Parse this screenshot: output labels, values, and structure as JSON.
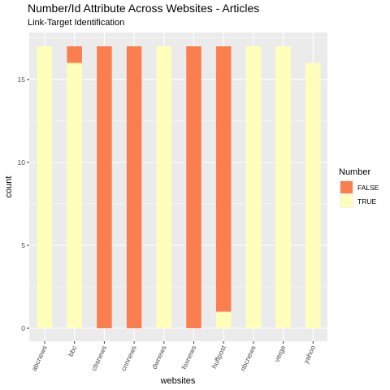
{
  "chart_data": {
    "type": "bar",
    "stacked": true,
    "title": "Number/Id Attribute Across Websites - Articles",
    "subtitle": "Link-Target Identification",
    "xlabel": "websites",
    "ylabel": "count",
    "ylim": [
      0,
      17.85
    ],
    "yticks": [
      0,
      5,
      10,
      15
    ],
    "grid": true,
    "legend_position": "right",
    "legend_title": "Number",
    "categories": [
      "abcnews",
      "bbc",
      "cbsnews",
      "cnnnews",
      "dwnews",
      "foxnews",
      "huffpost",
      "nbcnews",
      "verge",
      "yahoo"
    ],
    "series": [
      {
        "name": "FALSE",
        "color": "#fb7f4e",
        "values": [
          0,
          1,
          17,
          17,
          0,
          17,
          16,
          0,
          0,
          0
        ]
      },
      {
        "name": "TRUE",
        "color": "#ffffbb",
        "values": [
          17,
          16,
          0,
          0,
          17,
          0,
          1,
          17,
          17,
          16
        ]
      }
    ]
  }
}
